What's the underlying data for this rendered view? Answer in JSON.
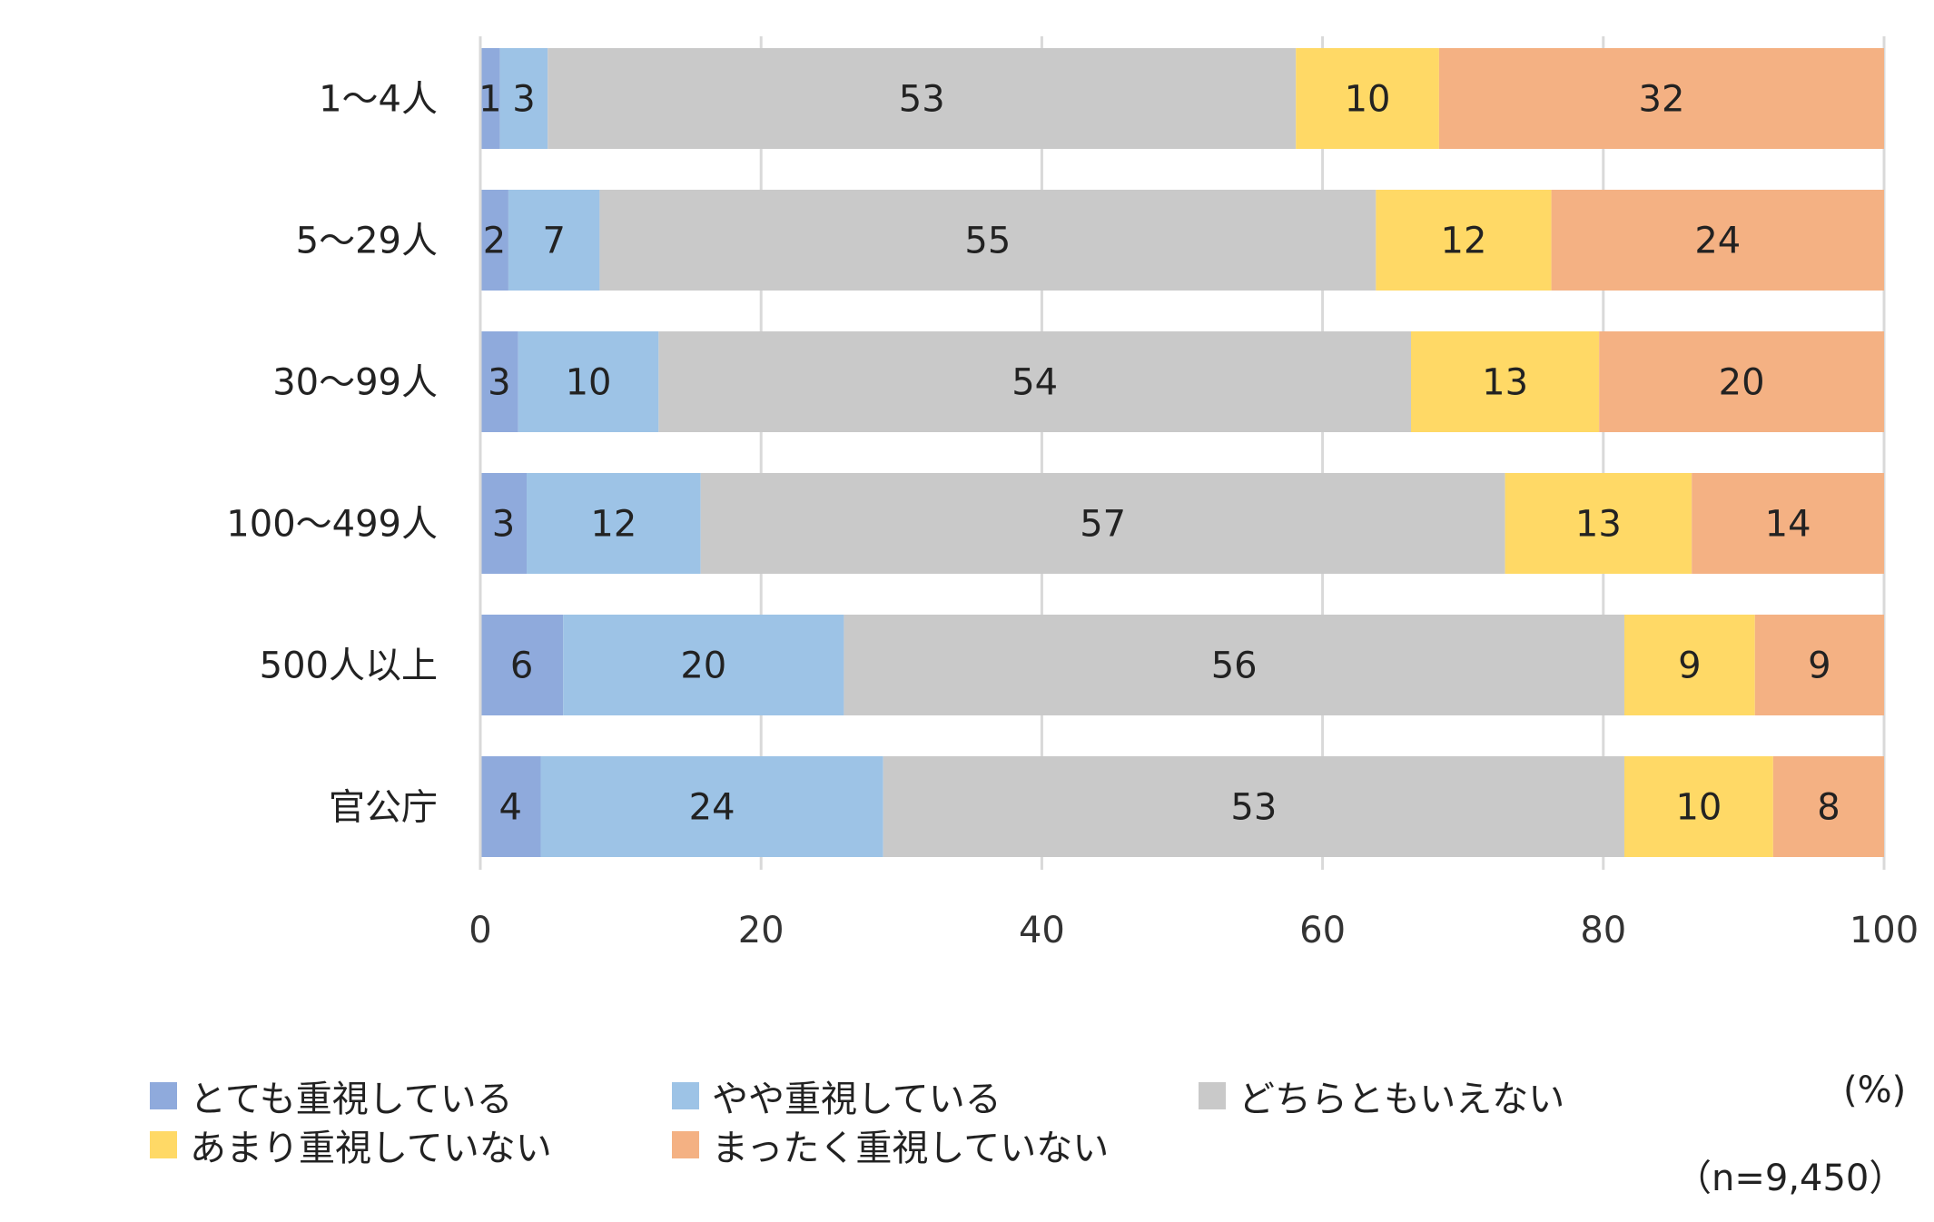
{
  "chart_data": {
    "type": "bar",
    "orientation": "horizontal",
    "stacked": true,
    "categories": [
      "1～4人",
      "5～29人",
      "30～99人",
      "100～499人",
      "500人以上",
      "官公庁"
    ],
    "series": [
      {
        "name": "とても重視している",
        "color": "#8faadc",
        "values": [
          1,
          2,
          3,
          3,
          6,
          4
        ],
        "plot_values": [
          1.4,
          2.0,
          2.7,
          3.3,
          5.9,
          4.3
        ]
      },
      {
        "name": "やや重視している",
        "color": "#9dc3e6",
        "values": [
          3,
          7,
          10,
          12,
          20,
          24
        ],
        "plot_values": [
          3.4,
          6.5,
          10.0,
          12.4,
          20.0,
          24.4
        ]
      },
      {
        "name": "どちらともいえない",
        "color": "#c9c9c9",
        "values": [
          53,
          55,
          54,
          57,
          56,
          53
        ],
        "plot_values": [
          53.3,
          55.3,
          53.6,
          57.3,
          55.6,
          52.8
        ]
      },
      {
        "name": "あまり重視していない",
        "color": "#ffd966",
        "values": [
          10,
          12,
          13,
          13,
          9,
          10
        ],
        "plot_values": [
          10.2,
          12.5,
          13.4,
          13.3,
          9.3,
          10.6
        ]
      },
      {
        "name": "まったく重視していない",
        "color": "#f4b183",
        "values": [
          32,
          24,
          20,
          14,
          9,
          8
        ],
        "plot_values": [
          31.7,
          23.7,
          20.3,
          13.7,
          9.2,
          7.9
        ]
      }
    ],
    "xlim": [
      0,
      100
    ],
    "xticks": [
      0,
      20,
      40,
      60,
      80,
      100
    ],
    "grid": true,
    "legend_position": "bottom",
    "unit_label": "(%)",
    "sample_note": "（n=9,450）"
  }
}
